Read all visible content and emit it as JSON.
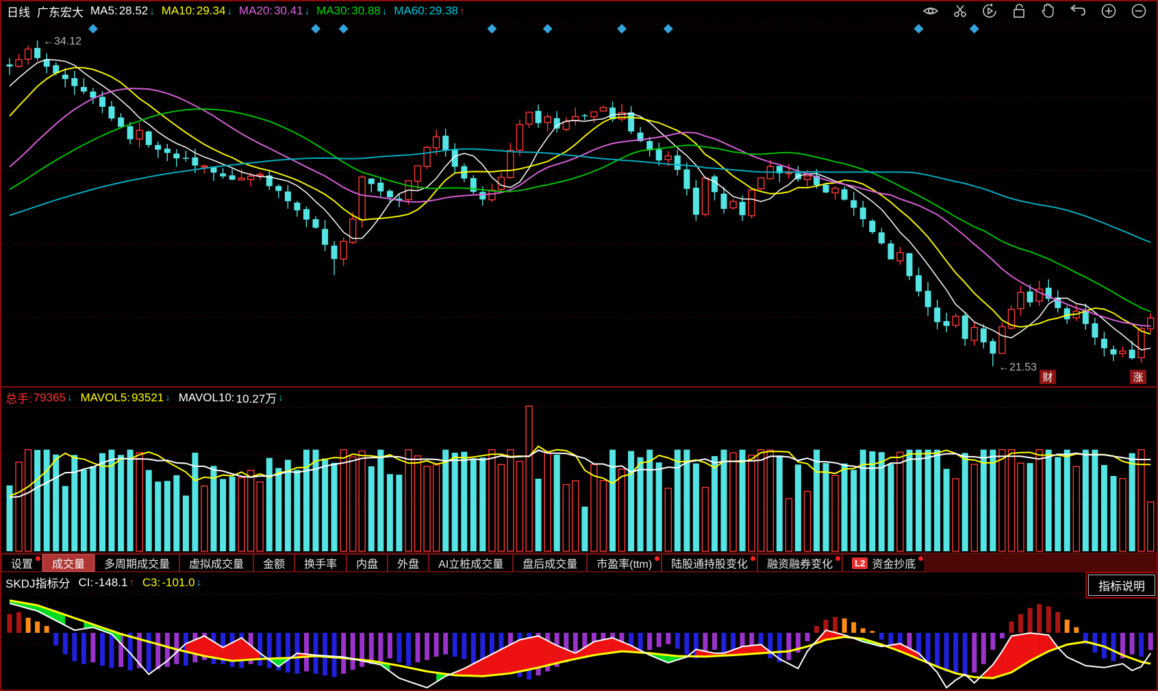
{
  "titlebar": {
    "period": "日线",
    "symbol": "广东宏大",
    "ma_items": [
      {
        "label": "MA5:",
        "value": "28.52",
        "arrow": "↓",
        "color": "#ffffff",
        "arrow_color": "#00d2dc"
      },
      {
        "label": "MA10:",
        "value": "29.34",
        "arrow": "↓",
        "color": "#ffff00",
        "arrow_color": "#00d2dc"
      },
      {
        "label": "MA20:",
        "value": "30.41",
        "arrow": "↓",
        "color": "#e064e0",
        "arrow_color": "#00d2dc"
      },
      {
        "label": "MA30:",
        "value": "30.88",
        "arrow": "↓",
        "color": "#00d800",
        "arrow_color": "#00d2dc"
      },
      {
        "label": "MA60:",
        "value": "29.38",
        "arrow": "↑",
        "color": "#00c8dc",
        "arrow_color": "#ff3232"
      }
    ],
    "toolbar_icons": [
      "eye",
      "scissors",
      "replay",
      "lock",
      "hand",
      "undo",
      "zoom-in",
      "zoom-out"
    ]
  },
  "price_panel": {
    "high_label": "←34.12",
    "low_label": "←21.53",
    "badge_left": "财",
    "badge_right": "涨"
  },
  "volume_panel": {
    "items": [
      {
        "label": "总手:",
        "value": "79365",
        "arrow": "↓",
        "color": "#ff3232",
        "arrow_color": "#00d2dc"
      },
      {
        "label": "MAVOL5:",
        "value": "93521",
        "arrow": "↓",
        "color": "#ffff00",
        "arrow_color": "#00d2dc"
      },
      {
        "label": "MAVOL10:",
        "value": "10.27万",
        "arrow": "↓",
        "color": "#ffffff",
        "arrow_color": "#00d2dc"
      }
    ]
  },
  "tabs": [
    {
      "label": "设置",
      "dot": true
    },
    {
      "label": "成交量",
      "active": true
    },
    {
      "label": "多周期成交量"
    },
    {
      "label": "虚拟成交量"
    },
    {
      "label": "金额"
    },
    {
      "label": "换手率"
    },
    {
      "label": "内盘"
    },
    {
      "label": "外盘"
    },
    {
      "label": "AI立桩成交量"
    },
    {
      "label": "盘后成交量"
    },
    {
      "label": "市盈率(ttm)",
      "dot": true
    },
    {
      "label": "陆股通持股变化",
      "dot": true
    },
    {
      "label": "融资融券变化",
      "dot": true
    },
    {
      "label": "资金抄底",
      "dot": true,
      "l2": "L2"
    }
  ],
  "skdj_panel": {
    "title": "SKDJ指标分",
    "items": [
      {
        "label": "CI:",
        "value": "-148.1",
        "arrow": "↑",
        "color": "#ffffff",
        "arrow_color": "#ff3232"
      },
      {
        "label": "C3:",
        "value": "-101.0",
        "arrow": "↓",
        "color": "#ffff00",
        "arrow_color": "#00d2dc"
      }
    ],
    "help_button": "指标说明"
  },
  "chart_data": {
    "type": "candlestick+volume+indicator",
    "title": "广东宏大 日线",
    "n": 124,
    "price": {
      "high": 34.12,
      "low": 21.53,
      "high_index": 3,
      "low_index": 106,
      "close_anchors": [
        [
          0,
          33.2
        ],
        [
          2,
          33.7
        ],
        [
          4,
          33.1
        ],
        [
          7,
          32.4
        ],
        [
          10,
          31.6
        ],
        [
          13,
          30.3
        ],
        [
          14,
          30.7
        ],
        [
          15,
          30.1
        ],
        [
          18,
          29.6
        ],
        [
          21,
          29.2
        ],
        [
          24,
          28.8
        ],
        [
          27,
          28.9
        ],
        [
          30,
          27.9
        ],
        [
          33,
          26.8
        ],
        [
          35,
          25.6
        ],
        [
          36,
          26.3
        ],
        [
          37,
          27.3
        ],
        [
          38,
          28.9
        ],
        [
          40,
          28.3
        ],
        [
          42,
          28.0
        ],
        [
          44,
          29.3
        ],
        [
          45,
          30.0
        ],
        [
          46,
          30.4
        ],
        [
          47,
          29.8
        ],
        [
          48,
          29.2
        ],
        [
          50,
          28.3
        ],
        [
          51,
          28.0
        ],
        [
          52,
          28.4
        ],
        [
          53,
          28.9
        ],
        [
          54,
          29.8
        ],
        [
          55,
          30.9
        ],
        [
          56,
          31.4
        ],
        [
          57,
          30.9
        ],
        [
          58,
          31.2
        ],
        [
          59,
          30.8
        ],
        [
          61,
          31.1
        ],
        [
          63,
          31.3
        ],
        [
          64,
          31.5
        ],
        [
          65,
          31.0
        ],
        [
          66,
          31.4
        ],
        [
          67,
          30.6
        ],
        [
          68,
          30.2
        ],
        [
          70,
          29.4
        ],
        [
          71,
          29.6
        ],
        [
          72,
          29.1
        ],
        [
          73,
          28.3
        ],
        [
          74,
          27.3
        ],
        [
          75,
          28.8
        ],
        [
          76,
          28.2
        ],
        [
          77,
          27.7
        ],
        [
          78,
          27.9
        ],
        [
          79,
          27.4
        ],
        [
          80,
          28.3
        ],
        [
          81,
          28.8
        ],
        [
          82,
          29.2
        ],
        [
          83,
          28.9
        ],
        [
          84,
          29.0
        ],
        [
          85,
          28.7
        ],
        [
          86,
          28.9
        ],
        [
          87,
          28.5
        ],
        [
          88,
          28.2
        ],
        [
          89,
          28.4
        ],
        [
          90,
          28.0
        ],
        [
          91,
          27.7
        ],
        [
          92,
          27.3
        ],
        [
          93,
          26.8
        ],
        [
          94,
          26.2
        ],
        [
          95,
          25.6
        ],
        [
          96,
          25.9
        ],
        [
          97,
          25.1
        ],
        [
          98,
          24.4
        ],
        [
          99,
          23.8
        ],
        [
          100,
          23.2
        ],
        [
          101,
          23.0
        ],
        [
          102,
          23.5
        ],
        [
          103,
          22.5
        ],
        [
          104,
          23.0
        ],
        [
          105,
          22.4
        ],
        [
          106,
          22.0
        ],
        [
          107,
          23.0
        ],
        [
          108,
          23.8
        ],
        [
          109,
          24.3
        ],
        [
          110,
          24.0
        ],
        [
          111,
          24.5
        ],
        [
          112,
          24.2
        ],
        [
          113,
          23.8
        ],
        [
          114,
          23.4
        ],
        [
          115,
          23.6
        ],
        [
          116,
          23.1
        ],
        [
          117,
          22.6
        ],
        [
          118,
          22.2
        ],
        [
          119,
          21.9
        ],
        [
          120,
          22.1
        ],
        [
          121,
          21.8
        ],
        [
          122,
          22.9
        ],
        [
          123,
          23.4
        ]
      ],
      "low_overrides": {
        "35": 25.05,
        "106": 21.53
      },
      "high_overrides": {
        "3": 34.12
      },
      "ma_periods": [
        5,
        10,
        20,
        30,
        60
      ],
      "ma_colors": [
        "#ffffff",
        "#ffff00",
        "#e064e0",
        "#00c800",
        "#00b4c8"
      ],
      "up_color": "#ff3838",
      "down_color": "#54e4e4",
      "marker_indices": [
        9,
        33,
        36,
        52,
        58,
        66,
        71,
        98,
        104
      ],
      "marker_color": "#35a3dd"
    },
    "volume": {
      "total_hands": 79365,
      "mavol5": 93521,
      "mavol10": "10.27万",
      "overrides": {
        "14": 0.68,
        "15": 0.56,
        "21": 0.45,
        "55": 0.62,
        "56": 1.0,
        "57": 0.5,
        "60": 0.46,
        "75": 0.44,
        "83": 0.66,
        "102": 0.5,
        "123": 0.34
      },
      "mavol5_color": "#ffff00",
      "mavol10_color": "#ffffff"
    },
    "skdj": {
      "ci": -148.1,
      "c3": -101.0,
      "hist": [
        0.5,
        0.55,
        0.4,
        0.3,
        0.18,
        -0.22,
        -0.38,
        -0.5,
        -0.55,
        -0.52,
        -0.58,
        -0.62,
        -0.6,
        -0.66,
        -0.62,
        -0.68,
        -0.64,
        -0.6,
        -0.55,
        -0.58,
        -0.52,
        -0.48,
        -0.55,
        -0.55,
        -0.6,
        -0.62,
        -0.55,
        -0.58,
        -0.62,
        -0.66,
        -0.7,
        -0.72,
        -0.68,
        -0.72,
        -0.75,
        -0.78,
        -0.72,
        -0.65,
        -0.6,
        -0.55,
        -0.5,
        -0.45,
        -0.52,
        -0.58,
        -0.52,
        -0.48,
        -0.42,
        -0.38,
        -0.42,
        -0.46,
        -0.55,
        -0.62,
        -0.7,
        -0.75,
        -0.72,
        -0.78,
        -0.82,
        -0.75,
        -0.68,
        -0.6,
        -0.52,
        -0.45,
        -0.38,
        -0.32,
        -0.28,
        -0.25,
        -0.22,
        -0.28,
        -0.35,
        -0.3,
        -0.25,
        -0.2,
        -0.28,
        -0.38,
        -0.45,
        -0.35,
        -0.3,
        -0.35,
        -0.4,
        -0.35,
        -0.3,
        -0.38,
        -0.45,
        -0.52,
        -0.48,
        -0.35,
        -0.15,
        0.18,
        0.35,
        0.42,
        0.38,
        0.28,
        0.12,
        0.05,
        -0.12,
        -0.25,
        -0.35,
        -0.3,
        -0.45,
        -0.55,
        -0.6,
        -0.68,
        -0.72,
        -0.75,
        -0.7,
        -0.55,
        -0.3,
        -0.1,
        0.3,
        0.5,
        0.66,
        0.76,
        0.7,
        0.55,
        0.35,
        0.15,
        -0.2,
        -0.35,
        -0.45,
        -0.5,
        -0.45,
        -0.38,
        -0.42,
        -0.3
      ],
      "white_anchors": [
        [
          0,
          0.1
        ],
        [
          3,
          0.18
        ],
        [
          7,
          0.38
        ],
        [
          9,
          0.35
        ],
        [
          11,
          0.42
        ],
        [
          13,
          0.62
        ],
        [
          15,
          0.84
        ],
        [
          17,
          0.7
        ],
        [
          19,
          0.52
        ],
        [
          21,
          0.44
        ],
        [
          23,
          0.56
        ],
        [
          25,
          0.46
        ],
        [
          27,
          0.62
        ],
        [
          29,
          0.76
        ],
        [
          31,
          0.62
        ],
        [
          33,
          0.64
        ],
        [
          36,
          0.66
        ],
        [
          38,
          0.7
        ],
        [
          40,
          0.74
        ],
        [
          42,
          0.88
        ],
        [
          45,
          0.98
        ],
        [
          47,
          0.86
        ],
        [
          49,
          0.78
        ],
        [
          51,
          0.68
        ],
        [
          53,
          0.58
        ],
        [
          55,
          0.48
        ],
        [
          57,
          0.44
        ],
        [
          59,
          0.54
        ],
        [
          61,
          0.62
        ],
        [
          63,
          0.5
        ],
        [
          65,
          0.46
        ],
        [
          67,
          0.54
        ],
        [
          69,
          0.64
        ],
        [
          71,
          0.72
        ],
        [
          73,
          0.66
        ],
        [
          74,
          0.58
        ],
        [
          75,
          0.6
        ],
        [
          76,
          0.62
        ],
        [
          77,
          0.62
        ],
        [
          79,
          0.55
        ],
        [
          81,
          0.53
        ],
        [
          83,
          0.68
        ],
        [
          85,
          0.78
        ],
        [
          86,
          0.6
        ],
        [
          88,
          0.38
        ],
        [
          90,
          0.43
        ],
        [
          92,
          0.5
        ],
        [
          94,
          0.55
        ],
        [
          96,
          0.52
        ],
        [
          98,
          0.62
        ],
        [
          100,
          0.82
        ],
        [
          101,
          0.98
        ],
        [
          102,
          0.9
        ],
        [
          103,
          0.84
        ],
        [
          104,
          0.93
        ],
        [
          106,
          0.74
        ],
        [
          107,
          0.6
        ],
        [
          108,
          0.44
        ],
        [
          110,
          0.41
        ],
        [
          112,
          0.43
        ],
        [
          113,
          0.56
        ],
        [
          114,
          0.66
        ],
        [
          116,
          0.75
        ],
        [
          118,
          0.77
        ],
        [
          120,
          0.73
        ],
        [
          121,
          0.8
        ],
        [
          122,
          0.76
        ],
        [
          123,
          0.62
        ]
      ],
      "yellow_anchors": [
        [
          0,
          0.07
        ],
        [
          3,
          0.12
        ],
        [
          6,
          0.22
        ],
        [
          9,
          0.32
        ],
        [
          12,
          0.42
        ],
        [
          15,
          0.5
        ],
        [
          18,
          0.58
        ],
        [
          21,
          0.65
        ],
        [
          24,
          0.7
        ],
        [
          27,
          0.68
        ],
        [
          30,
          0.67
        ],
        [
          33,
          0.65
        ],
        [
          36,
          0.67
        ],
        [
          39,
          0.7
        ],
        [
          42,
          0.75
        ],
        [
          45,
          0.81
        ],
        [
          48,
          0.85
        ],
        [
          51,
          0.86
        ],
        [
          54,
          0.83
        ],
        [
          57,
          0.77
        ],
        [
          60,
          0.7
        ],
        [
          63,
          0.64
        ],
        [
          66,
          0.6
        ],
        [
          69,
          0.62
        ],
        [
          72,
          0.65
        ],
        [
          75,
          0.655
        ],
        [
          78,
          0.64
        ],
        [
          81,
          0.62
        ],
        [
          84,
          0.6
        ],
        [
          86,
          0.55
        ],
        [
          88,
          0.48
        ],
        [
          90,
          0.45
        ],
        [
          92,
          0.47
        ],
        [
          94,
          0.53
        ],
        [
          96,
          0.6
        ],
        [
          98,
          0.68
        ],
        [
          100,
          0.76
        ],
        [
          102,
          0.83
        ],
        [
          104,
          0.87
        ],
        [
          106,
          0.88
        ],
        [
          108,
          0.82
        ],
        [
          110,
          0.7
        ],
        [
          112,
          0.6
        ],
        [
          114,
          0.53
        ],
        [
          116,
          0.5
        ],
        [
          118,
          0.55
        ],
        [
          120,
          0.64
        ],
        [
          122,
          0.71
        ],
        [
          123,
          0.73
        ]
      ],
      "pos_colors": {
        "rising": "#aa1414",
        "falling": "#ff8c14"
      },
      "neg_colors": {
        "falling": "#2020dd",
        "rising": "#9933cc"
      },
      "line_colors": {
        "fast": "#ffffff",
        "slow": "#ffff00"
      },
      "fill_colors": {
        "bull": "#ee1111",
        "bear": "#00dd22"
      }
    },
    "grid_color": "#7a0f0f"
  }
}
